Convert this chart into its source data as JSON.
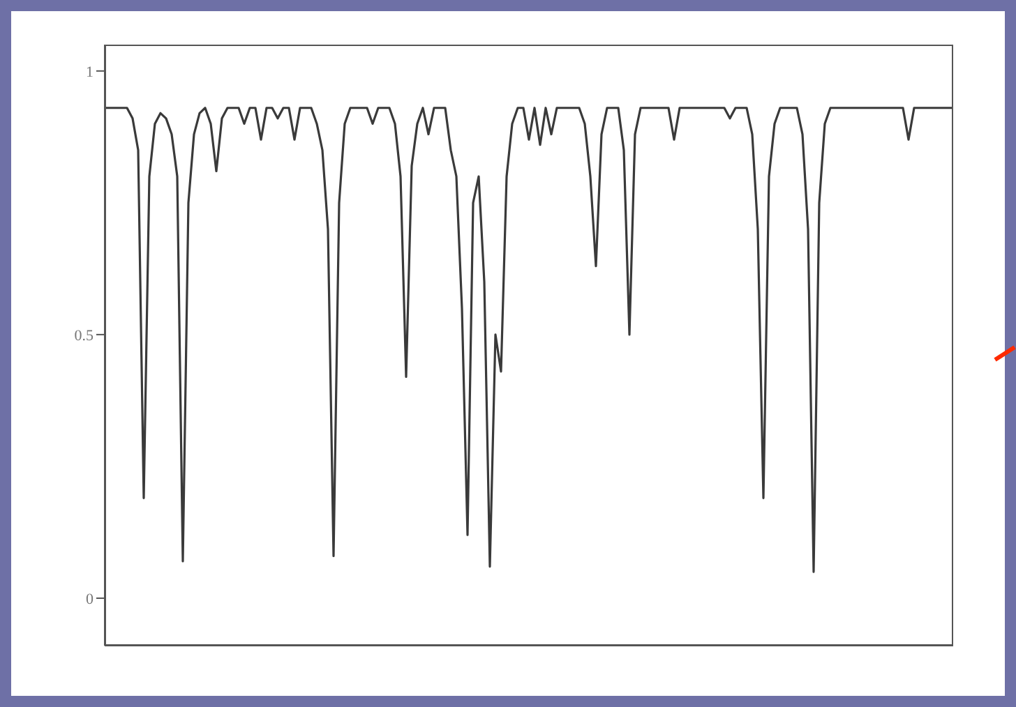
{
  "chart_data": {
    "type": "line",
    "categories": [
      null,
      null,
      null,
      null,
      null,
      null,
      null,
      null,
      null,
      null,
      null,
      null,
      null,
      null,
      null,
      null,
      null,
      null,
      null,
      null,
      null,
      null,
      null,
      null,
      null,
      null,
      null,
      null,
      null,
      null,
      null,
      null,
      null,
      null,
      null,
      null,
      null,
      null,
      null,
      null,
      null,
      null,
      null,
      null,
      null,
      null,
      null,
      null,
      null,
      null,
      null,
      null,
      null,
      null,
      null,
      null,
      null,
      null,
      null,
      null,
      null,
      null,
      null,
      null,
      null,
      null,
      null,
      null,
      null,
      null,
      null,
      null,
      null,
      null,
      null,
      null,
      null,
      null,
      null,
      null,
      null,
      null,
      null,
      null,
      null,
      null,
      null,
      null,
      null,
      null,
      null,
      null,
      null,
      null,
      null,
      null,
      null,
      null,
      null,
      null,
      null,
      null,
      null,
      null,
      null,
      null,
      null,
      null,
      null,
      null,
      null,
      null,
      null,
      null,
      null,
      null,
      null,
      null,
      null,
      null,
      null,
      null,
      null,
      null,
      null,
      null,
      null,
      null,
      null,
      null,
      null,
      null,
      null,
      null,
      null,
      null,
      null,
      null,
      null,
      null,
      null,
      null,
      null,
      null,
      null,
      null,
      null,
      null,
      null,
      null,
      null,
      null,
      null
    ],
    "series": [
      {
        "color": "#3a3a3a",
        "values": [
          0.93,
          0.93,
          0.93,
          0.93,
          0.93,
          0.91,
          0.85,
          0.19,
          0.8,
          0.9,
          0.92,
          0.91,
          0.88,
          0.8,
          0.07,
          0.75,
          0.88,
          0.92,
          0.93,
          0.9,
          0.81,
          0.91,
          0.93,
          0.93,
          0.93,
          0.9,
          0.93,
          0.93,
          0.87,
          0.93,
          0.93,
          0.91,
          0.93,
          0.93,
          0.87,
          0.93,
          0.93,
          0.93,
          0.9,
          0.85,
          0.7,
          0.08,
          0.75,
          0.9,
          0.93,
          0.93,
          0.93,
          0.93,
          0.9,
          0.93,
          0.93,
          0.93,
          0.9,
          0.8,
          0.42,
          0.82,
          0.9,
          0.93,
          0.88,
          0.93,
          0.93,
          0.93,
          0.85,
          0.8,
          0.55,
          0.12,
          0.75,
          0.8,
          0.6,
          0.06,
          0.5,
          0.43,
          0.8,
          0.9,
          0.93,
          0.93,
          0.87,
          0.93,
          0.86,
          0.93,
          0.88,
          0.93,
          0.93,
          0.93,
          0.93,
          0.93,
          0.9,
          0.8,
          0.63,
          0.88,
          0.93,
          0.93,
          0.93,
          0.85,
          0.5,
          0.88,
          0.93,
          0.93,
          0.93,
          0.93,
          0.93,
          0.93,
          0.87,
          0.93,
          0.93,
          0.93,
          0.93,
          0.93,
          0.93,
          0.93,
          0.93,
          0.93,
          0.91,
          0.93,
          0.93,
          0.93,
          0.88,
          0.7,
          0.19,
          0.8,
          0.9,
          0.93,
          0.93,
          0.93,
          0.93,
          0.88,
          0.7,
          0.05,
          0.75,
          0.9,
          0.93,
          0.93,
          0.93,
          0.93,
          0.93,
          0.93,
          0.93,
          0.93,
          0.93,
          0.93,
          0.93,
          0.93,
          0.93,
          0.93,
          0.87,
          0.93,
          0.93,
          0.93,
          0.93,
          0.93,
          0.93,
          0.93,
          0.93
        ]
      }
    ],
    "ylim": [
      -0.09,
      1.05
    ],
    "yticks": [
      1,
      0.5,
      0
    ],
    "tick_labels": "y",
    "grid": false,
    "legend": false,
    "marker": "none",
    "line_style": "solid"
  }
}
